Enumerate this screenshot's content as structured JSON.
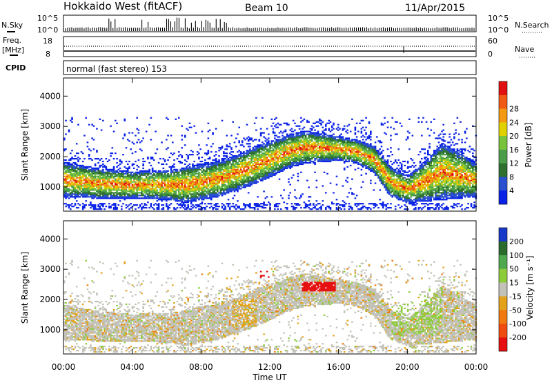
{
  "header": {
    "title": "Hokkaido West (fitACF)",
    "beam": "Beam 10",
    "date": "11/Apr/2015"
  },
  "strip": {
    "nsky_label": "N.Sky",
    "nsearch_label": "N.Search",
    "noise_ticks": [
      "10^5",
      "10^0"
    ],
    "freq_label": "Freq.",
    "freq_unit": "[MHz]",
    "freq_ticks": [
      "18",
      "8"
    ],
    "nave_label": "Nave",
    "nave_ticks": [
      "60",
      "0"
    ],
    "cpid_label": "CPID",
    "cpid_value": "normal (fast stereo) 153"
  },
  "colors": {
    "power": [
      "#0a22e6",
      "#2a4fcf",
      "#2f6f2f",
      "#4a9e4a",
      "#77c43c",
      "#e2d100",
      "#f39a12",
      "#f05a14",
      "#e01010"
    ],
    "velocity": [
      "#1838c8",
      "#2a6a2a",
      "#4ea84e",
      "#8ccc3a",
      "#c2c2b8",
      "#e3a21a",
      "#f07a10",
      "#f04c10",
      "#e61010"
    ]
  },
  "chart_data": [
    {
      "type": "heatmap",
      "panel": "power",
      "ylabel": "Slant Range [km]",
      "yticks": [
        1000,
        2000,
        3000,
        4000
      ],
      "ylim": [
        200,
        4600
      ],
      "xlim": [
        0,
        24
      ],
      "colorbar": {
        "label": "Power [dB]",
        "ticks": [
          "4",
          "8",
          "12",
          "16",
          "20",
          "24",
          "28"
        ],
        "range": [
          0,
          32
        ]
      },
      "main_echo_band": {
        "hours": [
          0,
          2,
          4,
          6,
          7,
          8,
          9,
          10,
          11,
          12,
          13,
          14,
          15,
          16,
          17,
          18,
          19,
          20,
          21,
          22,
          23,
          24
        ],
        "range_low": [
          900,
          850,
          850,
          800,
          700,
          800,
          900,
          1100,
          1300,
          1550,
          1850,
          2000,
          2050,
          2100,
          2000,
          1700,
          900,
          700,
          750,
          800,
          850,
          900
        ],
        "range_high": [
          1550,
          1350,
          1250,
          1300,
          1400,
          1500,
          1600,
          1800,
          2050,
          2250,
          2450,
          2600,
          2500,
          2400,
          2300,
          2100,
          1400,
          1100,
          1600,
          2200,
          1900,
          1500
        ]
      }
    },
    {
      "type": "heatmap",
      "panel": "velocity",
      "ylabel": "Slant Range [km]",
      "yticks": [
        1000,
        2000,
        3000,
        4000
      ],
      "ylim": [
        200,
        4600
      ],
      "xlim": [
        0,
        24
      ],
      "xlabel": "Time UT",
      "xticks": [
        "00:00",
        "04:00",
        "08:00",
        "12:00",
        "16:00",
        "20:00",
        "00:00"
      ],
      "colorbar": {
        "label": "Velocity [m s⁻¹]",
        "ticks": [
          "200",
          "100",
          "50",
          "15",
          "-15",
          "-50",
          "-100",
          "-200"
        ],
        "range": [
          -250,
          250
        ]
      },
      "notable_features": {
        "strong_negative_patch_hours": [
          13.8,
          15.8
        ],
        "strong_negative_patch_range": [
          2250,
          2550
        ]
      }
    }
  ]
}
